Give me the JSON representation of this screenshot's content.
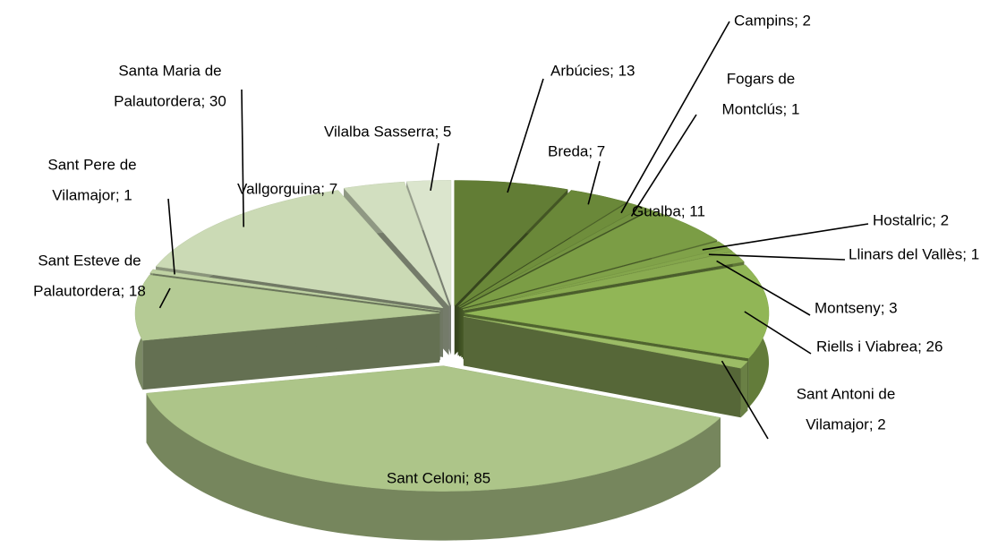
{
  "chart_data": {
    "type": "pie3d",
    "values": [
      13,
      7,
      2,
      1,
      11,
      2,
      1,
      3,
      26,
      2,
      85,
      18,
      1,
      30,
      7,
      5
    ],
    "value_labels": [
      [
        "Arbúcies; 13"
      ],
      [
        "Breda; 7"
      ],
      [
        "Campins; 2"
      ],
      [
        "Fogars de",
        "Montclús; 1"
      ],
      [
        "Gualba; 11"
      ],
      [
        "Hostalric; 2"
      ],
      [
        "Llinars del Vallès; 1"
      ],
      [
        "Montseny; 3"
      ],
      [
        "Riells i Viabrea; 26"
      ],
      [
        "Sant Antoni de",
        "Vilamajor; 2"
      ],
      [
        "Sant Celoni; 85"
      ],
      [
        "Sant Esteve de",
        "Palautordera; 18"
      ],
      [
        "Sant Pere de",
        "Vilamajor; 1"
      ],
      [
        "Santa Maria de",
        "Palautordera; 30"
      ],
      [
        "Vallgorguina; 7"
      ],
      [
        "Vilalba Sasserra; 5"
      ]
    ],
    "colors": [
      "#627d35",
      "#6a8839",
      "#6f8e3c",
      "#739340",
      "#7b9d45",
      "#80a249",
      "#84a64c",
      "#89ab50",
      "#91b656",
      "#9cbc66",
      "#adc589",
      "#b5cb95",
      "#bfd2a3",
      "#cbdab5",
      "#d2dfc0",
      "#dbe5cd"
    ]
  }
}
